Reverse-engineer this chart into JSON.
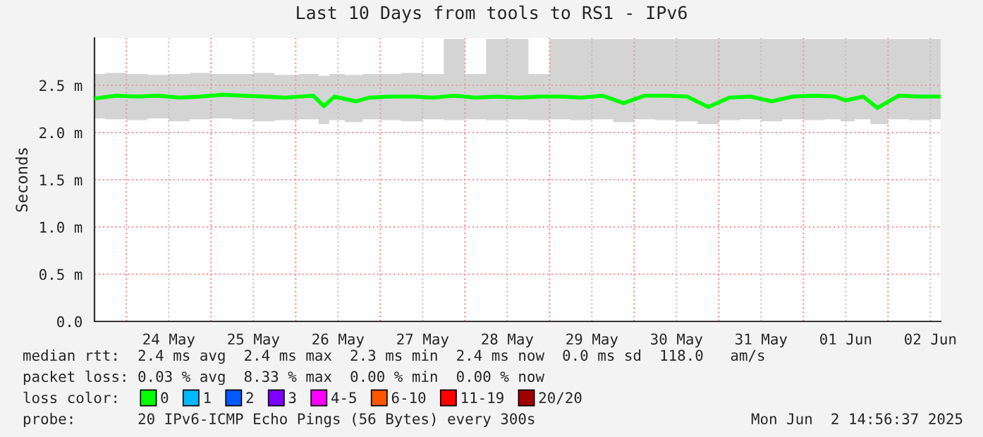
{
  "chart_data": {
    "type": "line",
    "title": "Last 10 Days from tools to RS1 - IPv6",
    "ylabel": "Seconds",
    "legend_title": "loss color:",
    "x": [
      "2025-05-23T15:00",
      "2025-05-23T21:00",
      "2025-05-24T03:00",
      "2025-05-24T09:00",
      "2025-05-24T15:00",
      "2025-05-24T21:00",
      "2025-05-25T03:00",
      "2025-05-25T09:00",
      "2025-05-25T15:00",
      "2025-05-25T21:00",
      "2025-05-26T05:00",
      "2025-05-26T08:00",
      "2025-05-26T11:00",
      "2025-05-26T17:00",
      "2025-05-26T21:00",
      "2025-05-27T03:00",
      "2025-05-27T09:00",
      "2025-05-27T15:00",
      "2025-05-27T21:00",
      "2025-05-28T03:00",
      "2025-05-28T09:00",
      "2025-05-28T15:00",
      "2025-05-28T21:00",
      "2025-05-29T03:00",
      "2025-05-29T09:00",
      "2025-05-29T15:00",
      "2025-05-29T21:00",
      "2025-05-30T03:00",
      "2025-05-30T09:00",
      "2025-05-30T15:00",
      "2025-05-30T21:00",
      "2025-05-31T03:00",
      "2025-05-31T09:00",
      "2025-05-31T15:00",
      "2025-05-31T21:00",
      "2025-06-01T03:00",
      "2025-06-01T09:00",
      "2025-06-01T12:00",
      "2025-06-01T17:00",
      "2025-06-01T21:00",
      "2025-06-02T03:00",
      "2025-06-02T09:00",
      "2025-06-02T14:56"
    ],
    "series": [
      {
        "name": "0",
        "color": "#00ff00",
        "values": [
          2.36,
          2.39,
          2.38,
          2.39,
          2.37,
          2.38,
          2.4,
          2.39,
          2.38,
          2.37,
          2.39,
          2.28,
          2.38,
          2.33,
          2.37,
          2.38,
          2.38,
          2.37,
          2.39,
          2.37,
          2.38,
          2.37,
          2.38,
          2.38,
          2.37,
          2.39,
          2.31,
          2.39,
          2.39,
          2.38,
          2.27,
          2.37,
          2.38,
          2.33,
          2.38,
          2.39,
          2.38,
          2.34,
          2.38,
          2.26,
          2.39,
          2.38,
          2.38
        ],
        "lower": [
          2.15,
          2.14,
          2.13,
          2.15,
          2.12,
          2.14,
          2.15,
          2.14,
          2.12,
          2.13,
          2.14,
          2.09,
          2.13,
          2.11,
          2.14,
          2.13,
          2.12,
          2.14,
          2.13,
          2.14,
          2.13,
          2.14,
          2.13,
          2.14,
          2.13,
          2.14,
          2.11,
          2.14,
          2.13,
          2.12,
          2.09,
          2.13,
          2.14,
          2.12,
          2.14,
          2.13,
          2.14,
          2.12,
          2.14,
          2.09,
          2.14,
          2.13,
          2.14
        ],
        "upper": [
          2.62,
          2.63,
          2.62,
          2.61,
          2.62,
          2.63,
          2.62,
          2.62,
          2.63,
          2.61,
          2.62,
          2.6,
          2.62,
          2.61,
          2.62,
          2.62,
          2.63,
          2.62,
          2.99,
          2.62,
          2.99,
          2.99,
          2.62,
          2.99,
          2.99,
          2.99,
          2.99,
          2.99,
          2.99,
          2.99,
          2.99,
          2.99,
          2.99,
          2.99,
          2.99,
          2.99,
          2.99,
          2.99,
          2.99,
          2.99,
          2.99,
          2.99,
          2.99
        ]
      },
      {
        "name": "1",
        "color": "#00b8ff",
        "values": [
          null,
          null,
          null,
          null,
          null,
          null,
          null,
          null,
          null,
          null,
          null,
          null,
          null,
          null,
          null,
          null,
          null,
          null,
          null,
          null,
          null,
          null,
          null,
          null,
          null,
          null,
          null,
          null,
          null,
          null,
          null,
          null,
          null,
          null,
          null,
          null,
          null,
          null,
          null,
          null,
          null,
          null,
          null
        ]
      },
      {
        "name": "2",
        "color": "#0059ff",
        "values": [
          null,
          null,
          null,
          null,
          null,
          null,
          null,
          null,
          null,
          null,
          null,
          null,
          null,
          null,
          null,
          null,
          null,
          null,
          null,
          null,
          null,
          null,
          null,
          null,
          null,
          null,
          null,
          null,
          null,
          null,
          null,
          null,
          null,
          null,
          null,
          null,
          null,
          null,
          null,
          null,
          null,
          null,
          null
        ]
      },
      {
        "name": "3",
        "color": "#7e00ff",
        "values": [
          null,
          null,
          null,
          null,
          null,
          null,
          null,
          null,
          null,
          null,
          null,
          null,
          null,
          null,
          null,
          null,
          null,
          null,
          null,
          null,
          null,
          null,
          null,
          null,
          null,
          null,
          null,
          null,
          null,
          null,
          null,
          null,
          null,
          null,
          null,
          null,
          null,
          null,
          null,
          null,
          null,
          null,
          null
        ]
      },
      {
        "name": "4-5",
        "color": "#ff00ff",
        "values": [
          null,
          null,
          null,
          null,
          null,
          null,
          null,
          null,
          null,
          null,
          null,
          null,
          null,
          null,
          null,
          null,
          null,
          null,
          null,
          null,
          null,
          null,
          null,
          null,
          null,
          null,
          null,
          null,
          null,
          null,
          null,
          null,
          null,
          null,
          null,
          null,
          null,
          null,
          null,
          null,
          null,
          null,
          null
        ]
      },
      {
        "name": "6-10",
        "color": "#ff5500",
        "values": [
          null,
          null,
          null,
          null,
          null,
          null,
          null,
          null,
          null,
          null,
          null,
          null,
          null,
          null,
          null,
          null,
          null,
          null,
          null,
          null,
          null,
          null,
          null,
          null,
          null,
          null,
          null,
          null,
          null,
          null,
          null,
          null,
          null,
          null,
          null,
          null,
          null,
          null,
          null,
          null,
          null,
          null,
          null
        ]
      },
      {
        "name": "11-19",
        "color": "#ff0000",
        "values": [
          null,
          null,
          null,
          null,
          null,
          null,
          null,
          null,
          null,
          null,
          null,
          null,
          null,
          null,
          null,
          null,
          null,
          null,
          null,
          null,
          null,
          null,
          null,
          null,
          null,
          null,
          null,
          null,
          null,
          null,
          null,
          null,
          null,
          null,
          null,
          null,
          null,
          null,
          null,
          null,
          null,
          null,
          null
        ]
      },
      {
        "name": "20/20",
        "color": "#a10000",
        "values": [
          null,
          null,
          null,
          null,
          null,
          null,
          null,
          null,
          null,
          null,
          null,
          null,
          null,
          null,
          null,
          null,
          null,
          null,
          null,
          null,
          null,
          null,
          null,
          null,
          null,
          null,
          null,
          null,
          null,
          null,
          null,
          null,
          null,
          null,
          null,
          null,
          null,
          null,
          null,
          null,
          null,
          null,
          null
        ]
      }
    ],
    "xlim": [
      "2025-05-23T14:56",
      "2025-06-02T14:56"
    ],
    "xticks": [
      {
        "value": "2025-05-24T00:00",
        "label": null
      },
      {
        "value": "2025-05-24T12:00",
        "label": "24 May"
      },
      {
        "value": "2025-05-25T00:00",
        "label": null
      },
      {
        "value": "2025-05-25T12:00",
        "label": "25 May"
      },
      {
        "value": "2025-05-26T00:00",
        "label": null
      },
      {
        "value": "2025-05-26T12:00",
        "label": "26 May"
      },
      {
        "value": "2025-05-27T00:00",
        "label": null
      },
      {
        "value": "2025-05-27T12:00",
        "label": "27 May"
      },
      {
        "value": "2025-05-28T00:00",
        "label": null
      },
      {
        "value": "2025-05-28T12:00",
        "label": "28 May"
      },
      {
        "value": "2025-05-29T00:00",
        "label": null
      },
      {
        "value": "2025-05-29T12:00",
        "label": "29 May"
      },
      {
        "value": "2025-05-30T00:00",
        "label": null
      },
      {
        "value": "2025-05-30T12:00",
        "label": "30 May"
      },
      {
        "value": "2025-05-31T00:00",
        "label": null
      },
      {
        "value": "2025-05-31T12:00",
        "label": "31 May"
      },
      {
        "value": "2025-06-01T00:00",
        "label": null
      },
      {
        "value": "2025-06-01T12:00",
        "label": "01 Jun"
      },
      {
        "value": "2025-06-02T00:00",
        "label": null
      },
      {
        "value": "2025-06-02T12:00",
        "label": "02 Jun"
      }
    ],
    "ylim": [
      0,
      3.0
    ],
    "yticks": [
      {
        "value": 0,
        "label": "0.0"
      },
      {
        "value": 0.5,
        "label": "0.5 m"
      },
      {
        "value": 1.0,
        "label": "1.0 m"
      },
      {
        "value": 1.5,
        "label": "1.5 m"
      },
      {
        "value": 2.0,
        "label": "2.0 m"
      },
      {
        "value": 2.5,
        "label": "2.5 m"
      }
    ],
    "grid": true,
    "legend": "bottom",
    "line_style": "solid",
    "marker": "none",
    "annotations": [
      "median rtt:  2.4 ms avg  2.4 ms max  2.3 ms min  2.4 ms now  0.0 ms sd  118.0   am/s",
      "packet loss: 0.03 % avg  8.33 % max  0.00 % min  0.00 % now",
      "probe:       20 IPv6-ICMP Echo Pings (56 Bytes) every 300s",
      "Mon Jun  2 14:56:37 2025"
    ]
  }
}
